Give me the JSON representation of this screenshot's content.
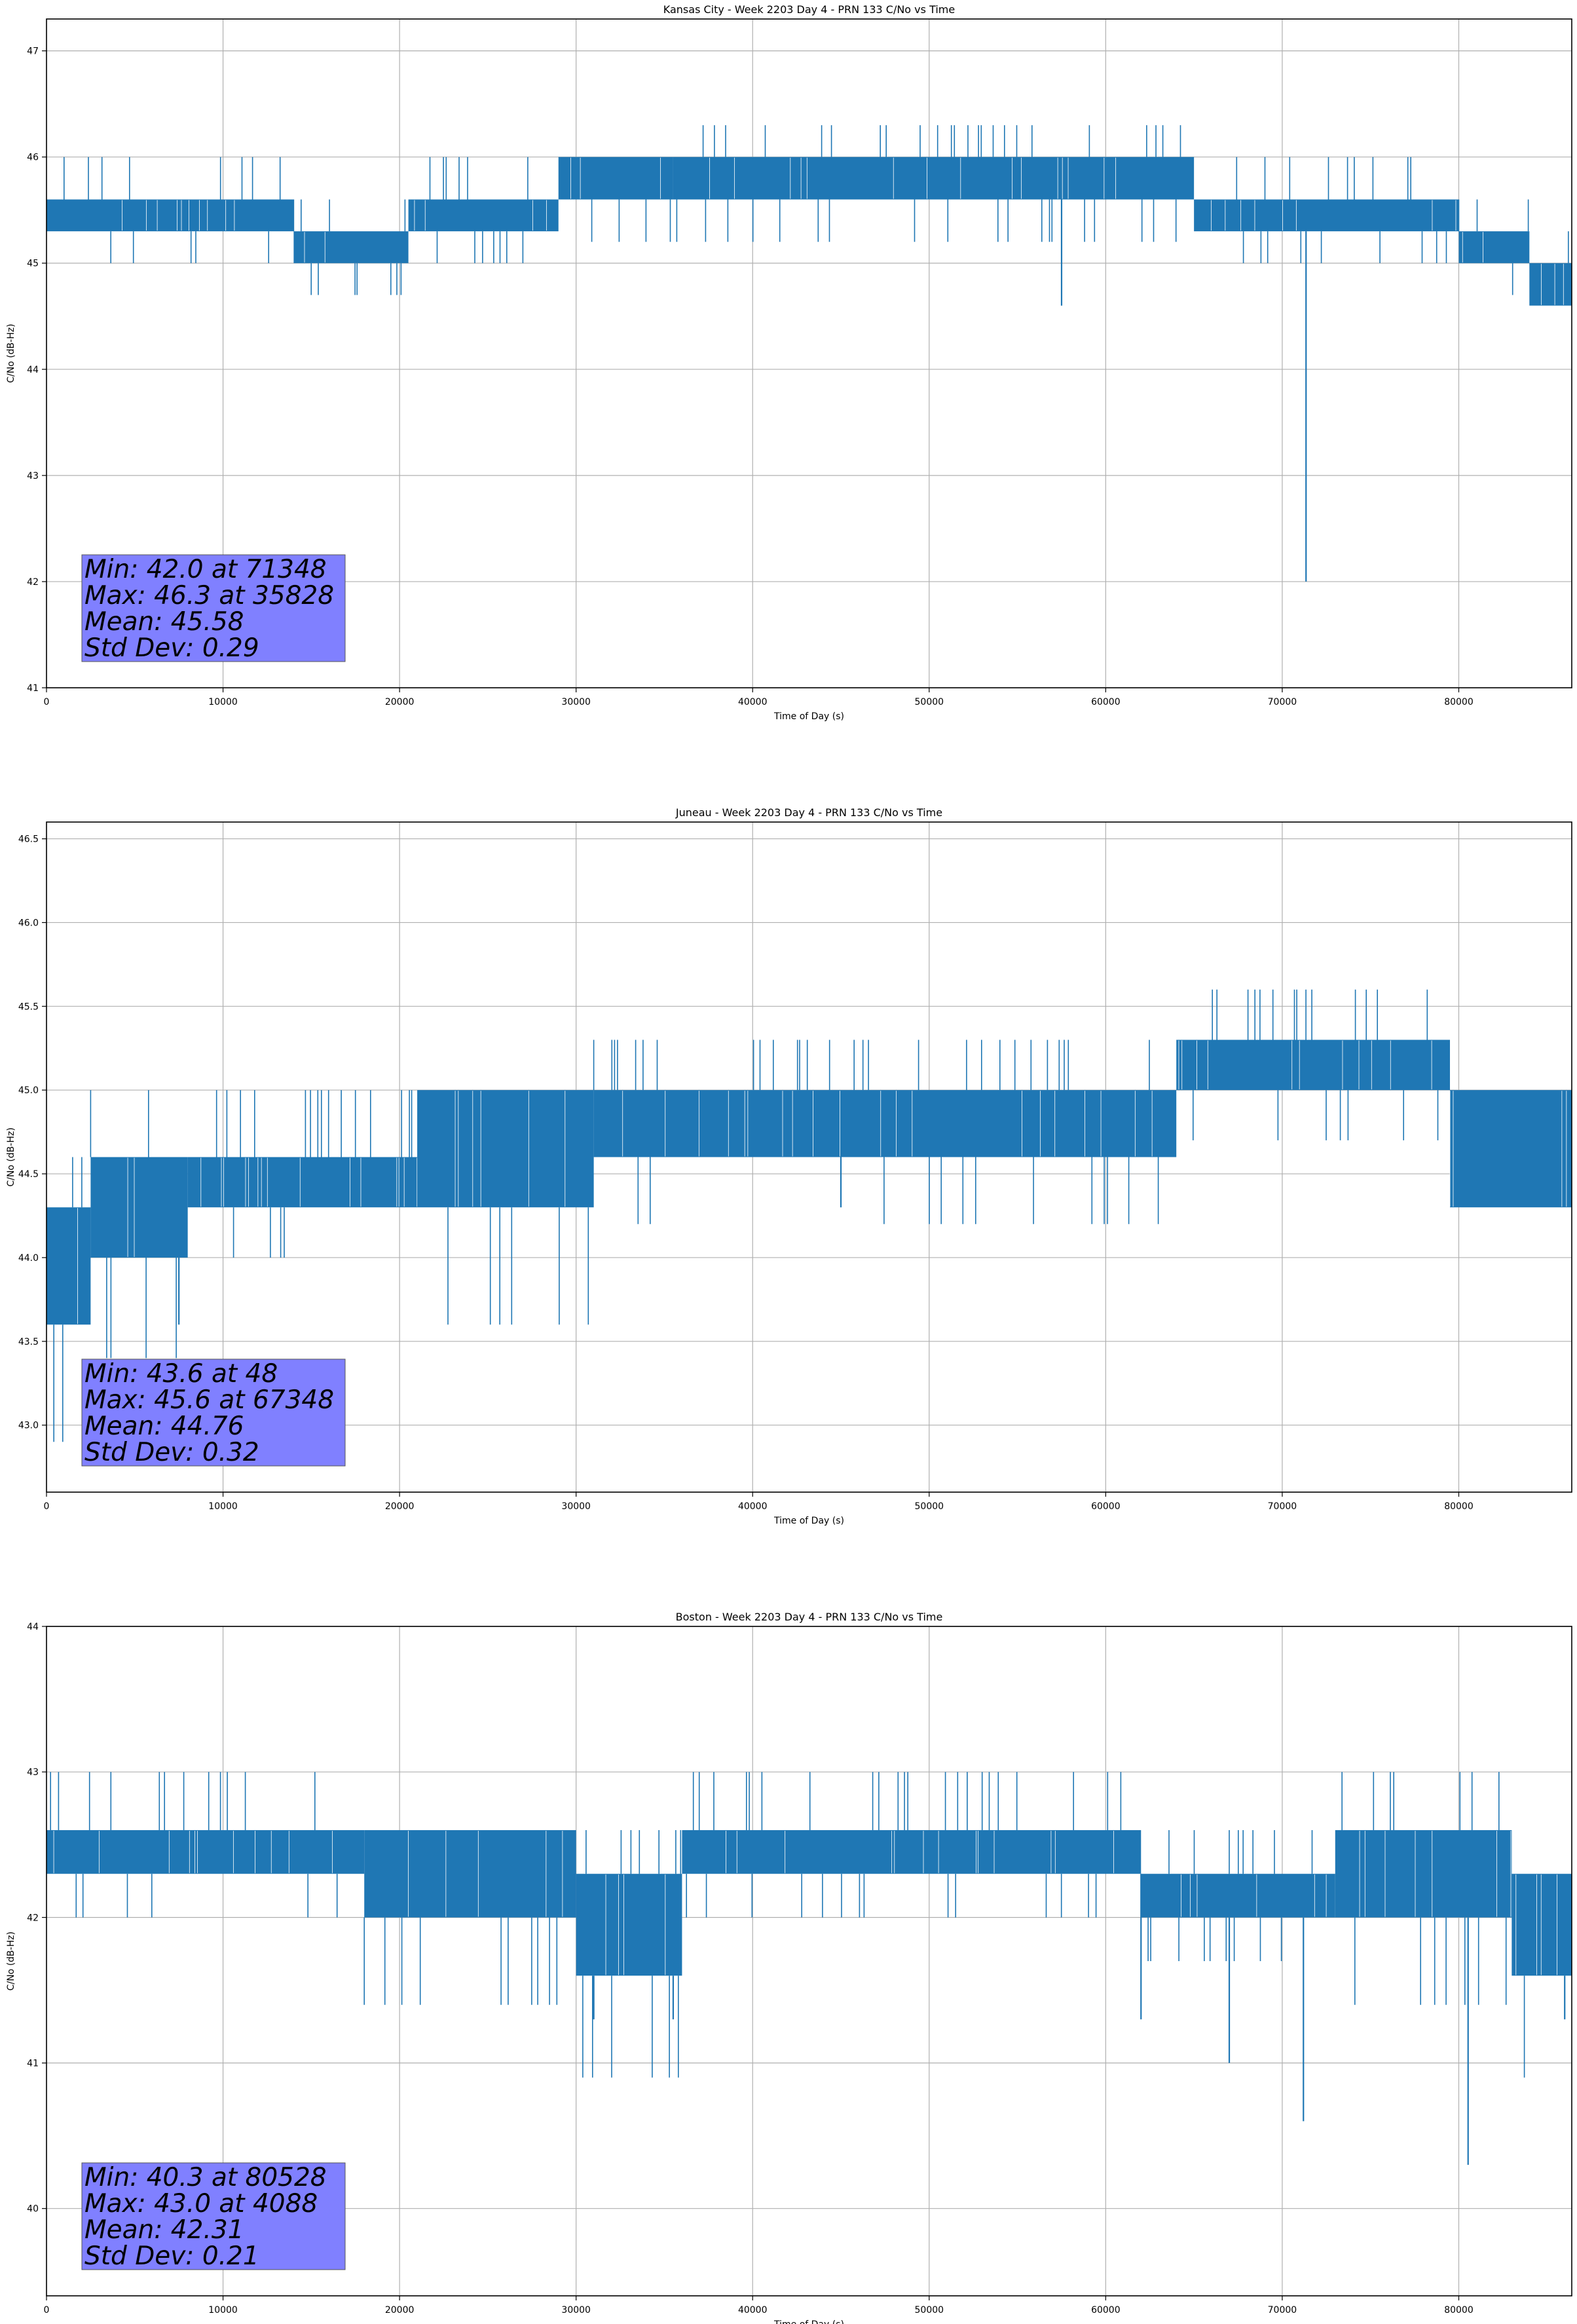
{
  "chart_data": [
    {
      "type": "line",
      "title": "Kansas City - Week 2203 Day 4 - PRN 133 C/No vs Time",
      "xlabel": "Time of Day (s)",
      "ylabel": "C/No (dB-Hz)",
      "xlim": [
        0,
        86400
      ],
      "ylim": [
        41,
        47.3
      ],
      "xticks": [
        0,
        10000,
        20000,
        30000,
        40000,
        50000,
        60000,
        70000,
        80000
      ],
      "yticks": [
        41,
        42,
        43,
        44,
        45,
        46,
        47
      ],
      "grid": true,
      "line_color": "#1f77b4",
      "segments": [
        {
          "x": [
            0,
            14000
          ],
          "low": 45.3,
          "high": 45.6,
          "spike_up": 46.0
        },
        {
          "x": [
            14000,
            20500
          ],
          "low": 45.0,
          "high": 45.3,
          "spike_up": 45.6
        },
        {
          "x": [
            20500,
            29000
          ],
          "low": 45.3,
          "high": 45.6,
          "spike_up": 46.0
        },
        {
          "x": [
            29000,
            35500
          ],
          "low": 45.6,
          "high": 46.0,
          "spike_up": 46.0
        },
        {
          "x": [
            35500,
            65000
          ],
          "low": 45.6,
          "high": 46.0,
          "spike_up": 46.3
        },
        {
          "x": [
            65000,
            80000
          ],
          "low": 45.3,
          "high": 45.6,
          "spike_up": 46.0
        },
        {
          "x": [
            80000,
            84000
          ],
          "low": 45.0,
          "high": 45.3,
          "spike_up": 45.6
        },
        {
          "x": [
            84000,
            86400
          ],
          "low": 44.6,
          "high": 45.0,
          "spike_up": 45.3
        }
      ],
      "spikes_down": [
        {
          "x": 57500,
          "y": 44.6
        },
        {
          "x": 71348,
          "y": 42.0
        }
      ],
      "stats": {
        "line1": "Min: 42.0 at 71348",
        "line2": "Max: 46.3 at 35828",
        "line3": "Mean: 45.58",
        "line4": "Std Dev: 0.29"
      }
    },
    {
      "type": "line",
      "title": "Juneau - Week 2203 Day 4 - PRN 133 C/No vs Time",
      "xlabel": "Time of Day (s)",
      "ylabel": "C/No (dB-Hz)",
      "xlim": [
        0,
        86400
      ],
      "ylim": [
        42.6,
        46.6
      ],
      "xticks": [
        0,
        10000,
        20000,
        30000,
        40000,
        50000,
        60000,
        70000,
        80000
      ],
      "yticks": [
        43.0,
        43.5,
        44.0,
        44.5,
        45.0,
        45.5,
        46.0,
        46.5
      ],
      "grid": true,
      "line_color": "#1f77b4",
      "segments": [
        {
          "x": [
            0,
            2500
          ],
          "low": 43.6,
          "high": 44.3,
          "spike_up": 44.6
        },
        {
          "x": [
            2500,
            8000
          ],
          "low": 44.0,
          "high": 44.6,
          "spike_up": 45.0
        },
        {
          "x": [
            8000,
            21000
          ],
          "low": 44.3,
          "high": 44.6,
          "spike_up": 45.0
        },
        {
          "x": [
            21000,
            31000
          ],
          "low": 44.3,
          "high": 45.0,
          "spike_up": 45.0
        },
        {
          "x": [
            31000,
            64000
          ],
          "low": 44.6,
          "high": 45.0,
          "spike_up": 45.3
        },
        {
          "x": [
            64000,
            79500
          ],
          "low": 45.0,
          "high": 45.3,
          "spike_up": 45.6
        },
        {
          "x": [
            79500,
            86400
          ],
          "low": 44.3,
          "high": 45.0,
          "spike_up": 45.0
        }
      ],
      "spikes_down": [
        {
          "x": 48,
          "y": 43.6
        },
        {
          "x": 7500,
          "y": 43.6
        },
        {
          "x": 45000,
          "y": 44.3
        }
      ],
      "stats": {
        "line1": "Min: 43.6 at 48",
        "line2": "Max: 45.6 at 67348",
        "line3": "Mean: 44.76",
        "line4": "Std Dev: 0.32"
      }
    },
    {
      "type": "line",
      "title": "Boston - Week 2203 Day 4 - PRN 133 C/No vs Time",
      "xlabel": "Time of Day (s)",
      "ylabel": "C/No (dB-Hz)",
      "xlim": [
        0,
        86400
      ],
      "ylim": [
        39.4,
        44.0
      ],
      "xticks": [
        0,
        10000,
        20000,
        30000,
        40000,
        50000,
        60000,
        70000,
        80000
      ],
      "yticks": [
        40,
        41,
        42,
        43,
        44
      ],
      "grid": true,
      "line_color": "#1f77b4",
      "segments": [
        {
          "x": [
            0,
            18000
          ],
          "low": 42.3,
          "high": 42.6,
          "spike_up": 43.0
        },
        {
          "x": [
            18000,
            30000
          ],
          "low": 42.0,
          "high": 42.6,
          "spike_up": 42.6
        },
        {
          "x": [
            30000,
            36000
          ],
          "low": 41.6,
          "high": 42.3,
          "spike_up": 42.6
        },
        {
          "x": [
            36000,
            62000
          ],
          "low": 42.3,
          "high": 42.6,
          "spike_up": 43.0
        },
        {
          "x": [
            62000,
            73000
          ],
          "low": 42.0,
          "high": 42.3,
          "spike_up": 42.6
        },
        {
          "x": [
            73000,
            83000
          ],
          "low": 42.0,
          "high": 42.6,
          "spike_up": 43.0
        },
        {
          "x": [
            83000,
            86400
          ],
          "low": 41.6,
          "high": 42.3,
          "spike_up": 42.3
        }
      ],
      "spikes_down": [
        {
          "x": 31000,
          "y": 41.3
        },
        {
          "x": 35500,
          "y": 41.3
        },
        {
          "x": 62000,
          "y": 41.3
        },
        {
          "x": 67000,
          "y": 41.0
        },
        {
          "x": 71200,
          "y": 40.6
        },
        {
          "x": 80528,
          "y": 40.3
        },
        {
          "x": 86000,
          "y": 41.3
        }
      ],
      "stats": {
        "line1": "Min: 40.3 at 80528",
        "line2": "Max: 43.0 at 4088",
        "line3": "Mean: 42.31",
        "line4": "Std Dev: 0.21"
      }
    }
  ]
}
